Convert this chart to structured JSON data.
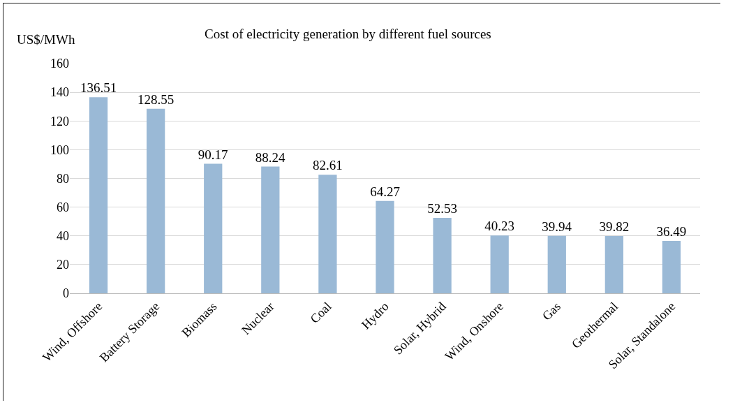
{
  "chart_data": {
    "type": "bar",
    "title": "Cost of electricity generation by different fuel sources",
    "ylabel": "US$/MWh",
    "categories": [
      "Wind, Offshore",
      "Battery Storage",
      "Biomass",
      "Nuclear",
      "Coal",
      "Hydro",
      "Solar, Hybrid",
      "Wind, Onshore",
      "Gas",
      "Geothermal",
      "Solar, Standalone"
    ],
    "values": [
      136.51,
      128.55,
      90.17,
      88.24,
      82.61,
      64.27,
      52.53,
      40.23,
      39.94,
      39.82,
      36.49
    ],
    "color": "#9ab9d6",
    "ylim": [
      0,
      160
    ],
    "yticks": [
      0,
      20,
      40,
      60,
      80,
      100,
      120,
      140,
      160
    ],
    "grid": "y",
    "data_labels": true
  }
}
